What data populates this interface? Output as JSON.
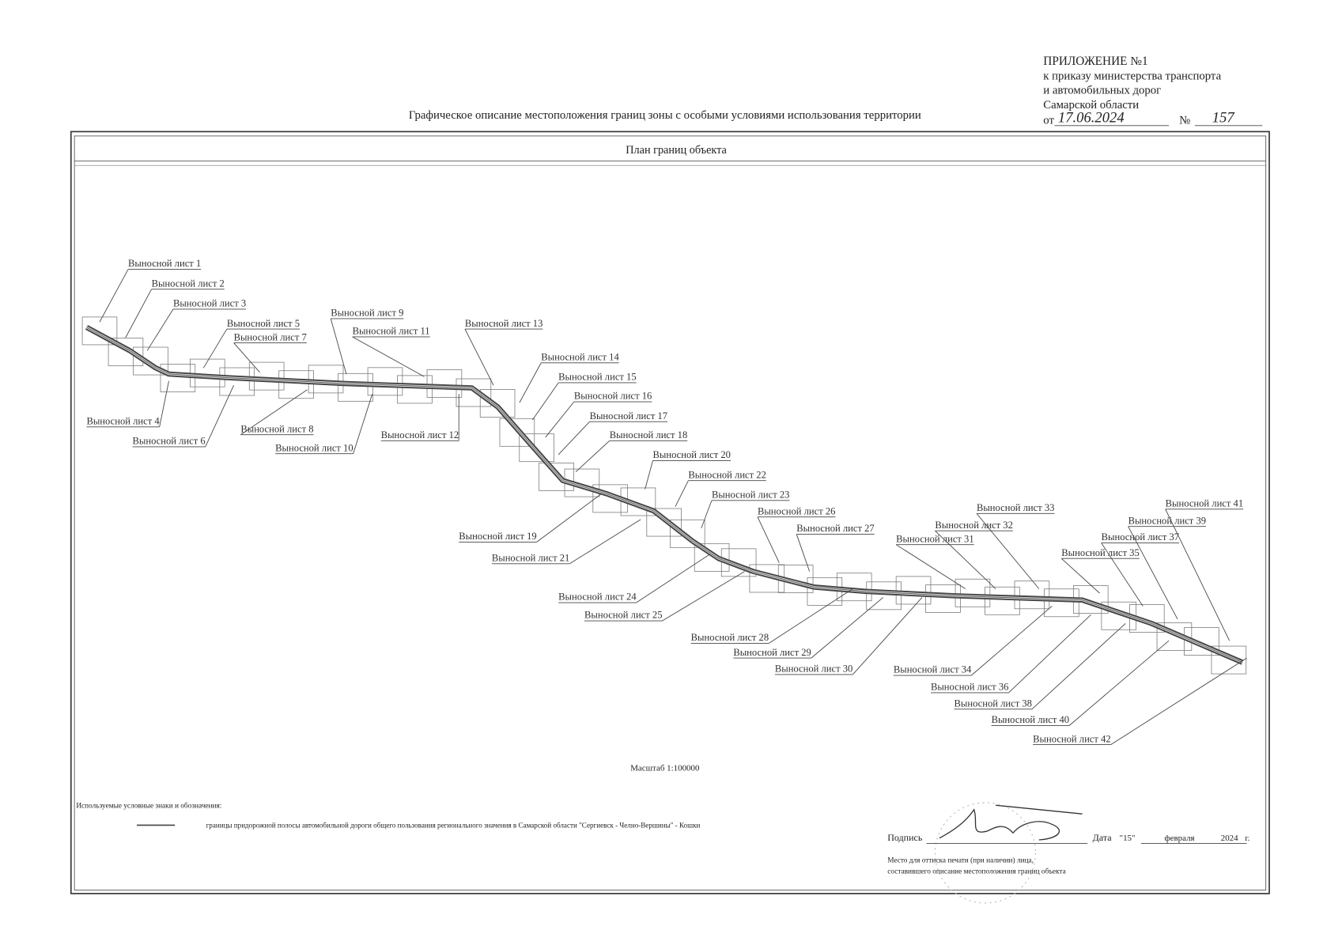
{
  "header": {
    "appendix": "ПРИЛОЖЕНИЕ №1",
    "lines": [
      "к приказу министерства транспорта",
      "и автомобильных дорог",
      "Самарской области"
    ],
    "date_prefix": "от",
    "date": "17.06.2024",
    "number_prefix": "№",
    "number": "157"
  },
  "title": "Графическое описание местоположения границ зоны с особыми условиями использования территории",
  "plan_title": "План границ объекта",
  "sheets": [
    "Выносной лист 1",
    "Выносной лист 2",
    "Выносной лист 3",
    "Выносной лист 4",
    "Выносной лист 5",
    "Выносной лист 6",
    "Выносной лист 7",
    "Выносной лист 8",
    "Выносной лист 9",
    "Выносной лист 10",
    "Выносной лист 11",
    "Выносной лист 12",
    "Выносной лист 13",
    "Выносной лист 14",
    "Выносной лист 15",
    "Выносной лист 16",
    "Выносной лист 17",
    "Выносной лист 18",
    "Выносной лист 19",
    "Выносной лист 20",
    "Выносной лист 21",
    "Выносной лист 22",
    "Выносной лист 23",
    "Выносной лист 24",
    "Выносной лист 25",
    "Выносной лист 26",
    "Выносной лист 27",
    "Выносной лист 28",
    "Выносной лист 29",
    "Выносной лист 30",
    "Выносной лист 31",
    "Выносной лист 32",
    "Выносной лист 33",
    "Выносной лист 34",
    "Выносной лист 35",
    "Выносной лист 36",
    "Выносной лист 37",
    "Выносной лист 38",
    "Выносной лист 39",
    "Выносной лист 40",
    "Выносной лист 41",
    "Выносной лист 42"
  ],
  "scale": "Масштаб 1:100000",
  "legend": {
    "heading": "Используемые условные знаки и обозначения:",
    "items": [
      "границы придорожной полосы автомобильной дороги общего пользования регионального значения в Самарской области \"Сергиевск - Челно-Вершины\" - Кошки"
    ]
  },
  "signature": {
    "label": "Подпись",
    "date_label": "Дата",
    "day": "\"15\"",
    "month": "февраля",
    "year": "2024",
    "year_suffix": "г.",
    "stamp_note": [
      "Место для оттиска печати (при наличии) лица,",
      "составившего описание местоположения границ объекта"
    ]
  }
}
